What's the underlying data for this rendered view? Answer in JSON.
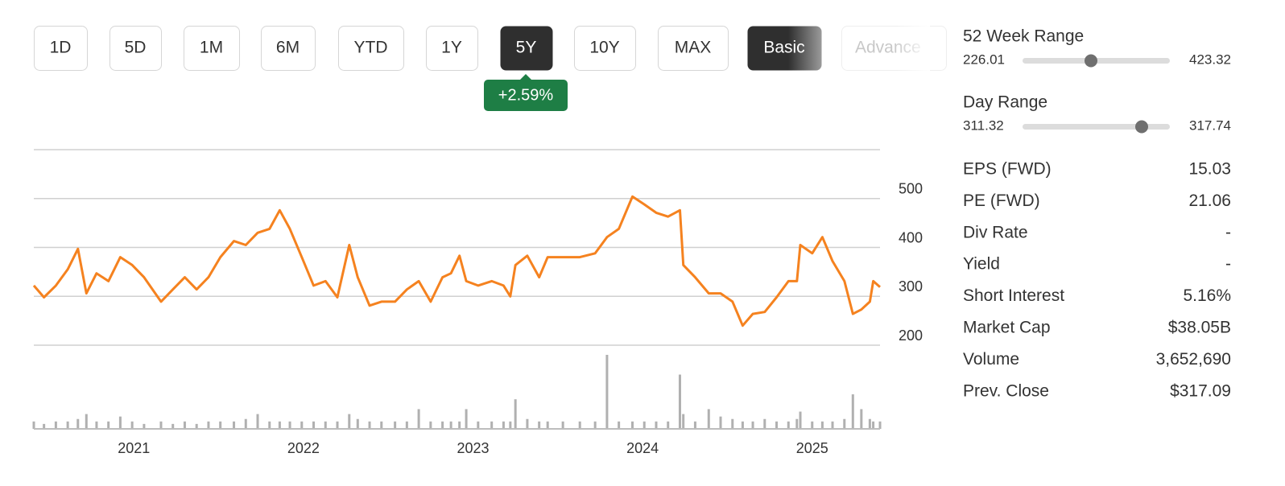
{
  "toolbar": {
    "buttons": [
      "1D",
      "5D",
      "1M",
      "6M",
      "YTD",
      "1Y",
      "5Y",
      "10Y",
      "MAX",
      "Basic",
      "Advance"
    ],
    "selected": [
      "5Y",
      "Basic"
    ]
  },
  "change_badge": "+2.59%",
  "chart_data": {
    "type": "line",
    "color": "#f5821f",
    "x": [
      2020.41,
      2020.47,
      2020.54,
      2020.61,
      2020.67,
      2020.72,
      2020.78,
      2020.85,
      2020.92,
      2020.99,
      2021.06,
      2021.16,
      2021.23,
      2021.3,
      2021.37,
      2021.44,
      2021.51,
      2021.59,
      2021.66,
      2021.73,
      2021.8,
      2021.86,
      2021.92,
      2021.99,
      2022.06,
      2022.13,
      2022.2,
      2022.27,
      2022.32,
      2022.39,
      2022.46,
      2022.54,
      2022.61,
      2022.68,
      2022.75,
      2022.82,
      2022.87,
      2022.92,
      2022.96,
      2023.03,
      2023.11,
      2023.18,
      2023.22,
      2023.25,
      2023.32,
      2023.39,
      2023.44,
      2023.53,
      2023.63,
      2023.72,
      2023.79,
      2023.86,
      2023.94,
      2024.01,
      2024.08,
      2024.15,
      2024.22,
      2024.24,
      2024.31,
      2024.39,
      2024.46,
      2024.53,
      2024.59,
      2024.65,
      2024.72,
      2024.79,
      2024.86,
      2024.91,
      2024.93,
      2025.0,
      2025.06,
      2025.12,
      2025.19,
      2025.24,
      2025.29,
      2025.34,
      2025.36,
      2025.4
    ],
    "values": [
      322,
      298,
      322,
      355,
      397,
      306,
      347,
      331,
      380,
      364,
      339,
      289,
      314,
      339,
      314,
      339,
      380,
      413,
      405,
      430,
      438,
      476,
      438,
      380,
      322,
      331,
      298,
      405,
      339,
      281,
      289,
      289,
      314,
      331,
      289,
      339,
      347,
      383,
      331,
      322,
      331,
      322,
      300,
      364,
      383,
      339,
      380,
      380,
      380,
      388,
      421,
      438,
      504,
      488,
      471,
      463,
      476,
      364,
      339,
      306,
      306,
      289,
      240,
      264,
      268,
      298,
      331,
      331,
      405,
      388,
      421,
      372,
      331,
      264,
      273,
      289,
      331,
      319
    ],
    "volume": [
      3,
      2,
      3,
      3,
      4,
      6,
      3,
      3,
      5,
      3,
      2,
      3,
      2,
      3,
      2,
      3,
      3,
      3,
      4,
      6,
      3,
      3,
      3,
      3,
      3,
      3,
      3,
      6,
      4,
      3,
      3,
      3,
      3,
      8,
      3,
      3,
      3,
      3,
      8,
      3,
      3,
      3,
      3,
      12,
      4,
      3,
      3,
      3,
      3,
      3,
      30,
      3,
      3,
      3,
      3,
      3,
      22,
      6,
      3,
      8,
      5,
      4,
      3,
      3,
      4,
      3,
      3,
      4,
      7,
      3,
      3,
      3,
      4,
      14,
      8,
      4,
      3,
      3
    ],
    "volume_ylim": [
      0,
      30
    ],
    "xlim": [
      2020.41,
      2025.4
    ],
    "xticks": [
      2021,
      2022,
      2023,
      2024,
      2025
    ],
    "ylim": [
      200,
      600
    ],
    "yticks": [
      200,
      300,
      400,
      500
    ],
    "grid": true
  },
  "stats": {
    "ranges": [
      {
        "label": "52 Week Range",
        "low": "226.01",
        "high": "423.32"
      },
      {
        "label": "Day Range",
        "low": "311.32",
        "high": "317.74"
      }
    ],
    "rows": [
      [
        "EPS (FWD)",
        "15.03"
      ],
      [
        "PE (FWD)",
        "21.06"
      ],
      [
        "Div Rate",
        "-"
      ],
      [
        "Yield",
        "-"
      ],
      [
        "Short Interest",
        "5.16%"
      ],
      [
        "Market Cap",
        "$38.05B"
      ],
      [
        "Volume",
        "3,652,690"
      ],
      [
        "Prev. Close",
        "$317.09"
      ]
    ]
  }
}
